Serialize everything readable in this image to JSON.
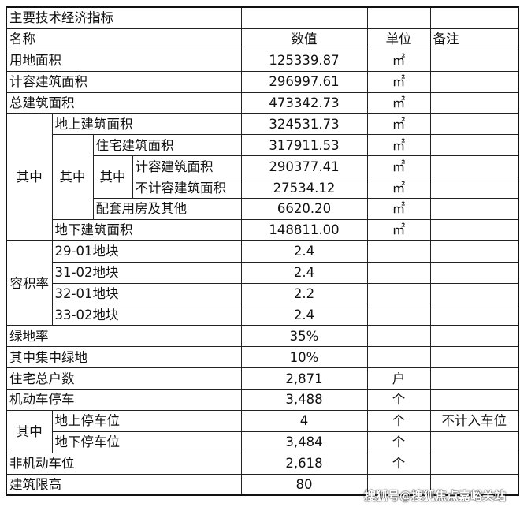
{
  "title": "主要技术经济指标",
  "header": {
    "name": "名称",
    "value": "数值",
    "unit": "单位",
    "remark": "备注"
  },
  "rows": {
    "land": {
      "name": "用地面积",
      "value": "125339.87",
      "unit": "㎡"
    },
    "far_area": {
      "name": "计容建筑面积",
      "value": "296997.61",
      "unit": "㎡"
    },
    "total": {
      "name": "总建筑面积",
      "value": "473342.73",
      "unit": "㎡"
    },
    "of_which": "其中",
    "above": {
      "name": "地上建筑面积",
      "value": "324531.73",
      "unit": "㎡"
    },
    "residential": {
      "name": "住宅建筑面积",
      "value": "317911.53",
      "unit": "㎡"
    },
    "res_far": {
      "name": "计容建筑面积",
      "value": "290377.41",
      "unit": "㎡"
    },
    "res_nonfar": {
      "name": "不计容建筑面积",
      "value": "27534.12",
      "unit": "㎡"
    },
    "support": {
      "name": "配套用房及其他",
      "value": "6620.20",
      "unit": "㎡"
    },
    "below": {
      "name": "地下建筑面积",
      "value": "148811.00",
      "unit": "㎡"
    },
    "far": {
      "name": "容积率",
      "plots": [
        {
          "name": "29-01地块",
          "value": "2.4"
        },
        {
          "name": "31-02地块",
          "value": "2.4"
        },
        {
          "name": "32-01地块",
          "value": "2.2"
        },
        {
          "name": "33-02地块",
          "value": "2.4"
        }
      ]
    },
    "green": {
      "name": "绿地率",
      "value": "35%"
    },
    "green_central": {
      "name": "其中集中绿地",
      "value": "10%"
    },
    "households": {
      "name": "住宅总户数",
      "value": "2,871",
      "unit": "户"
    },
    "parking": {
      "name": "机动车停车",
      "value": "3,488",
      "unit": "个"
    },
    "parking_above": {
      "name": "地上停车位",
      "value": "4",
      "unit": "个",
      "remark": "不计入车位"
    },
    "parking_below": {
      "name": "地下停车位",
      "value": "3,484",
      "unit": "个"
    },
    "bike": {
      "name": "非机动车位",
      "value": "2,618",
      "unit": "个"
    },
    "height": {
      "name": "建筑限高",
      "value": "80"
    }
  },
  "watermark": "搜狐号@搜狐焦点嘉峪关站"
}
